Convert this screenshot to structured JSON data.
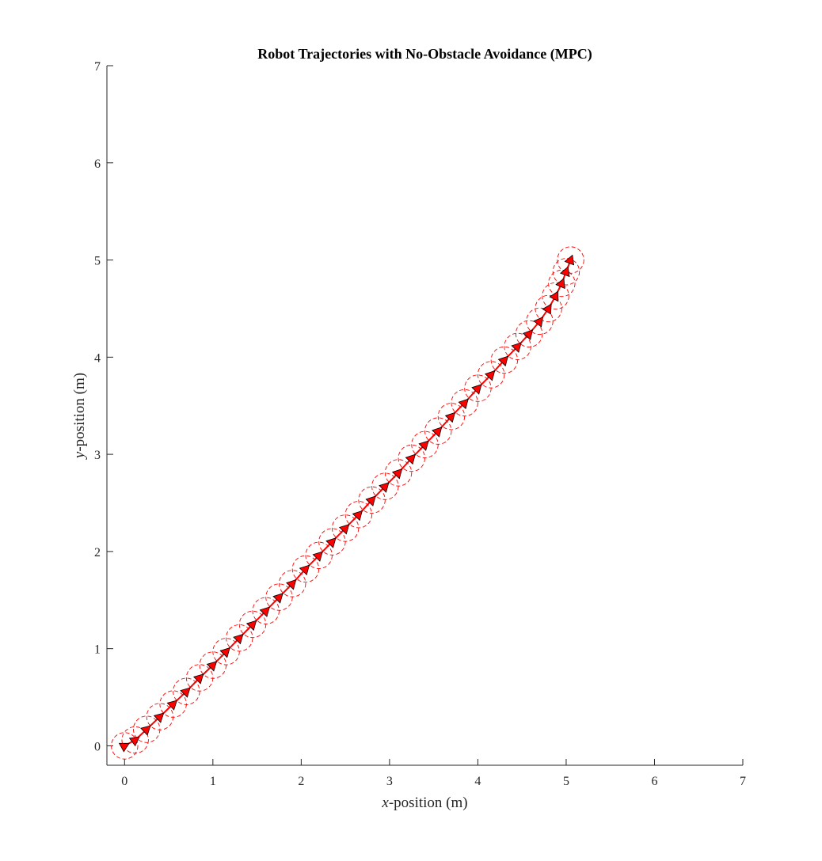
{
  "chart_data": {
    "type": "line",
    "title": "Robot Trajectories with No-Obstacle Avoidance (MPC)",
    "xlabel": {
      "var": "x",
      "rest": "-position (m)"
    },
    "ylabel": {
      "var": "y",
      "rest": "-position (m)"
    },
    "xlim": [
      -0.2,
      7
    ],
    "ylim": [
      -0.2,
      7
    ],
    "xticks": [
      0,
      1,
      2,
      3,
      4,
      5,
      6,
      7
    ],
    "yticks": [
      0,
      1,
      2,
      3,
      4,
      5,
      6,
      7
    ],
    "grid": false,
    "legend": "none",
    "colors": {
      "trajectory": "#ff0000",
      "marker_fill": "#ff0000",
      "marker_edge": "#000000",
      "safety_circle": "#ff0000",
      "axis": "#262626"
    },
    "series": [
      {
        "start": [
          0,
          0
        ],
        "goal": [
          5.05,
          5.0
        ],
        "x": [
          0.0,
          0.12,
          0.25,
          0.4,
          0.55,
          0.7,
          0.85,
          1.0,
          1.15,
          1.3,
          1.45,
          1.6,
          1.75,
          1.9,
          2.05,
          2.2,
          2.35,
          2.5,
          2.65,
          2.8,
          2.95,
          3.1,
          3.25,
          3.4,
          3.55,
          3.7,
          3.85,
          4.0,
          4.15,
          4.3,
          4.45,
          4.58,
          4.7,
          4.8,
          4.88,
          4.95,
          5.0,
          5.05
        ],
        "y": [
          0.0,
          0.06,
          0.17,
          0.3,
          0.43,
          0.56,
          0.7,
          0.83,
          0.97,
          1.11,
          1.25,
          1.39,
          1.53,
          1.67,
          1.82,
          1.96,
          2.1,
          2.24,
          2.38,
          2.53,
          2.67,
          2.81,
          2.96,
          3.1,
          3.24,
          3.39,
          3.53,
          3.68,
          3.82,
          3.97,
          4.11,
          4.24,
          4.37,
          4.5,
          4.63,
          4.76,
          4.88,
          5.0
        ],
        "safety_radius": 0.15
      }
    ]
  }
}
